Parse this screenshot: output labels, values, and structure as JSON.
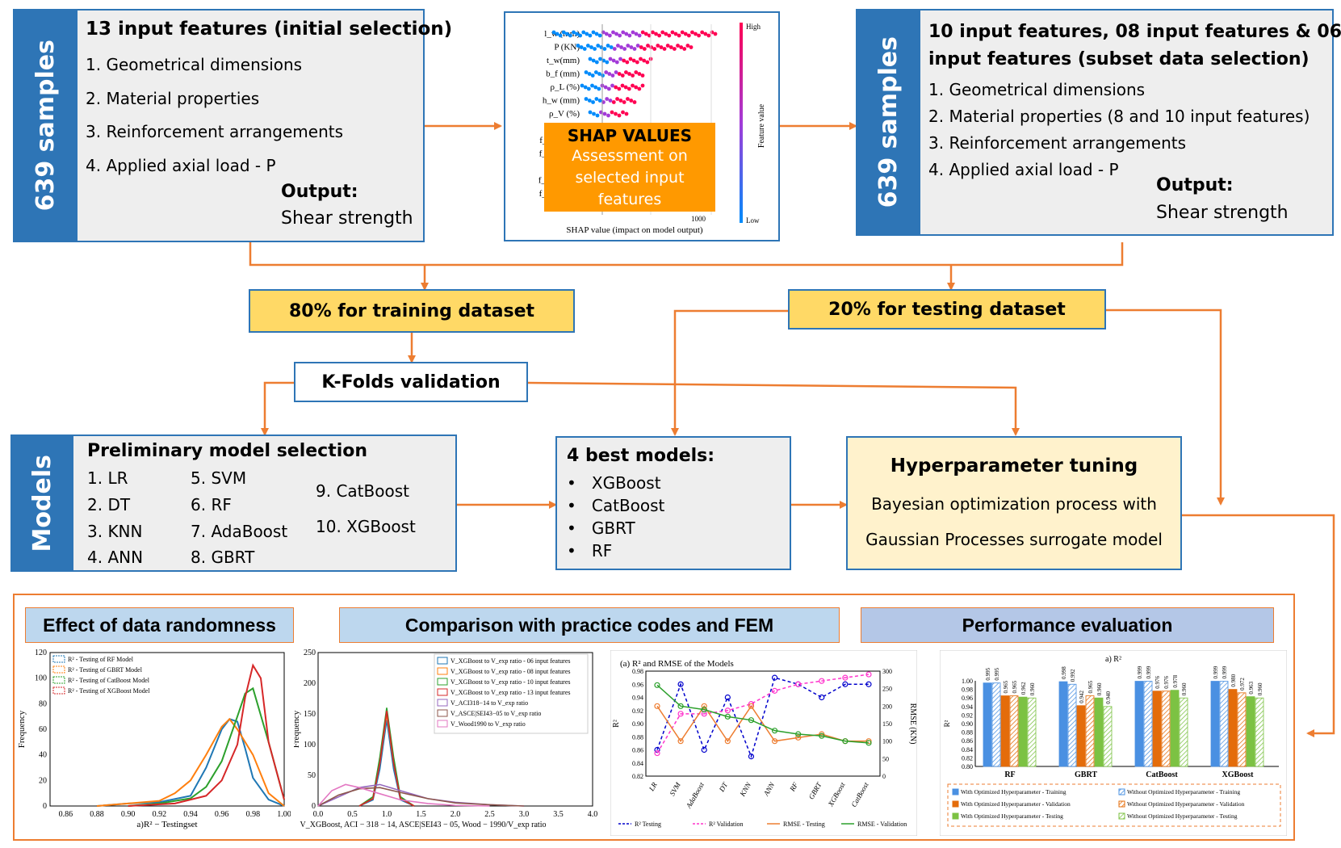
{
  "box1": {
    "side_label": "639 samples",
    "title": "13 input features (initial selection)",
    "items": [
      "1. Geometrical dimensions",
      "2. Material properties",
      "3. Reinforcement arrangements",
      "4. Applied axial load - P"
    ],
    "output_label": "Output:",
    "output_value": "Shear strength"
  },
  "shap": {
    "features": [
      "l_w (mm)",
      "P  (KN)",
      "t_w(mm)",
      "b_f (mm)",
      "ρ_L (%)",
      "h_w (mm)",
      "ρ_V (%)",
      "t_f (mm)",
      "f_ck (Mpa)",
      "f_yh (Mpa)",
      "ρ_h (%)",
      "f_yL (Mpa)",
      "f_yv (Mpa)"
    ],
    "overlay_title": "SHAP VALUES",
    "overlay_text": [
      "Assessment on",
      "selected input",
      "features"
    ],
    "xlabel": "SHAP value (impact on model output)",
    "high": "High",
    "low": "Low",
    "colorbar_label": "Feature value",
    "tick": "1000"
  },
  "box2": {
    "side_label": "639 samples",
    "title_line1": "10 input features, 08 input features & 06",
    "title_line2": "input features (subset data selection)",
    "items": [
      "1.   Geometrical dimensions",
      "2.    Material properties (8 and 10 input features)",
      "3.   Reinforcement arrangements",
      "4.    Applied axial load - P"
    ],
    "output_label": "Output:",
    "output_value": "Shear strength"
  },
  "train_label": "80% for training dataset",
  "test_label": "20% for testing dataset",
  "kfold_label": "K-Folds validation",
  "models": {
    "side_label": "Models",
    "title": "Preliminary model selection",
    "col1": [
      "1. LR",
      "2. DT",
      "3. KNN",
      "4. ANN"
    ],
    "col2": [
      "5. SVM",
      "6. RF",
      "7. AdaBoost",
      "8. GBRT"
    ],
    "col3": [
      "9. CatBoost",
      "10. XGBoost"
    ]
  },
  "best": {
    "title": "4 best models:",
    "items": [
      "XGBoost",
      "CatBoost",
      "GBRT",
      "RF"
    ]
  },
  "hyper": {
    "title": "Hyperparameter tuning",
    "line1": "Bayesian optimization process with",
    "line2": "Gaussian Processes surrogate model"
  },
  "headers": {
    "randomness": "Effect of data randomness",
    "codes": "Comparison with practice codes and FEM",
    "perf": "Performance evaluation"
  },
  "colors": {
    "blue": "#2e75b6",
    "orange": "#ed7d31",
    "yellow": "#ffd966",
    "grey": "#eeeeee",
    "cream": "#fff2cc",
    "hdr_blue": "#bdd7ee",
    "hdr_lav": "#b4c7e7",
    "shap_orange": "#ff9900"
  },
  "chart_data": [
    {
      "type": "line",
      "title": "",
      "xlabel": "a)R² − Testingset",
      "ylabel": "Frequency",
      "xlim": [
        0.85,
        1.0
      ],
      "ylim": [
        0,
        120
      ],
      "x_ticks": [
        "0.86",
        "0.88",
        "0.90",
        "0.92",
        "0.94",
        "0.96",
        "0.98",
        "1.00"
      ],
      "y_ticks": [
        "0",
        "20",
        "40",
        "60",
        "80",
        "100",
        "120"
      ],
      "legend": [
        "R² - Testing of RF Model",
        "R² - Testing of GBRT Model",
        "R² - Testing  of CatBoost Model",
        "R² - Testing  of XGBoost Model"
      ],
      "series": [
        {
          "name": "R² - Testing of RF Model",
          "color": "#1f77b4",
          "x": [
            0.88,
            0.9,
            0.92,
            0.94,
            0.95,
            0.96,
            0.965,
            0.97,
            0.975,
            0.98,
            0.99,
            1.0
          ],
          "y": [
            0,
            2,
            3,
            8,
            30,
            60,
            68,
            66,
            45,
            22,
            5,
            0
          ]
        },
        {
          "name": "R² - Testing of GBRT Model",
          "color": "#ff7f0e",
          "x": [
            0.88,
            0.9,
            0.92,
            0.93,
            0.94,
            0.95,
            0.96,
            0.965,
            0.97,
            0.98,
            0.99,
            1.0
          ],
          "y": [
            0,
            2,
            4,
            10,
            20,
            40,
            62,
            68,
            60,
            40,
            10,
            0
          ]
        },
        {
          "name": "R² - Testing  of CatBoost Model",
          "color": "#2ca02c",
          "x": [
            0.9,
            0.92,
            0.94,
            0.95,
            0.96,
            0.97,
            0.975,
            0.98,
            0.99,
            1.0
          ],
          "y": [
            0,
            2,
            6,
            15,
            35,
            70,
            88,
            92,
            50,
            5
          ]
        },
        {
          "name": "R² - Testing  of XGBoost Model",
          "color": "#d62728",
          "x": [
            0.9,
            0.93,
            0.95,
            0.96,
            0.97,
            0.975,
            0.98,
            0.985,
            0.99,
            1.0
          ],
          "y": [
            0,
            2,
            8,
            20,
            48,
            85,
            110,
            100,
            50,
            5
          ]
        }
      ]
    },
    {
      "type": "line",
      "title": "",
      "xlabel": "V_XGBoost, ACI − 318 − 14, ASCE|SEI43 − 05, Wood − 1990/V_exp ratio",
      "ylabel": "Frequency",
      "xlim": [
        0,
        4.0
      ],
      "ylim": [
        0,
        250
      ],
      "x_ticks": [
        "0.0",
        "0.5",
        "1.0",
        "1.5",
        "2.0",
        "2.5",
        "3.0",
        "3.5",
        "4.0"
      ],
      "y_ticks": [
        "0",
        "50",
        "100",
        "150",
        "200",
        "250"
      ],
      "legend": [
        "V_XGBoost to V_exp ratio - 06 input features",
        "V_XGBoost to V_exp ratio - 08 input features",
        "V_XGBoost to V_exp ratio - 10 input features",
        "V_XGBoost to V_exp ratio - 13 input features",
        "V_ACI318−14  to V_exp ratio",
        "V_ASCE|SEI43−05  to V_exp ratio",
        "V_Wood1990 to V_exp ratio"
      ],
      "series": [
        {
          "color": "#1f77b4",
          "x": [
            0.6,
            0.8,
            0.9,
            1.0,
            1.1,
            1.2,
            1.4
          ],
          "y": [
            0,
            10,
            60,
            140,
            60,
            10,
            0
          ]
        },
        {
          "color": "#ff7f0e",
          "x": [
            0.6,
            0.8,
            0.9,
            1.0,
            1.1,
            1.2,
            1.4
          ],
          "y": [
            0,
            12,
            70,
            150,
            70,
            12,
            0
          ]
        },
        {
          "color": "#2ca02c",
          "x": [
            0.6,
            0.8,
            0.9,
            1.0,
            1.1,
            1.2,
            1.4
          ],
          "y": [
            0,
            15,
            80,
            160,
            80,
            15,
            0
          ]
        },
        {
          "color": "#d62728",
          "x": [
            0.6,
            0.8,
            0.9,
            1.0,
            1.1,
            1.2,
            1.4
          ],
          "y": [
            0,
            12,
            70,
            155,
            70,
            12,
            0
          ]
        },
        {
          "color": "#9467bd",
          "x": [
            0,
            0.3,
            0.6,
            0.9,
            1.2,
            1.6,
            2.0,
            2.5,
            3.0
          ],
          "y": [
            0,
            15,
            30,
            35,
            25,
            12,
            6,
            2,
            0
          ]
        },
        {
          "color": "#8c564b",
          "x": [
            0,
            0.3,
            0.6,
            0.9,
            1.2,
            1.6,
            2.0,
            2.5,
            3.0
          ],
          "y": [
            0,
            18,
            28,
            30,
            22,
            12,
            5,
            2,
            0
          ]
        },
        {
          "color": "#e377c2",
          "x": [
            0,
            0.2,
            0.4,
            0.6,
            0.9,
            1.2,
            1.6,
            2.0,
            2.5
          ],
          "y": [
            0,
            25,
            35,
            30,
            20,
            10,
            4,
            1,
            0
          ]
        }
      ]
    },
    {
      "type": "line",
      "title": "(a) R² and RMSE of the Models",
      "ylabel": "R²",
      "y2label": "RMSE (KN)",
      "categories": [
        "LR",
        "SVM",
        "AdaBoost",
        "DT",
        "KNN",
        "ANN",
        "RF",
        "GBRT",
        "XGBoost",
        "CatBoost"
      ],
      "ylim": [
        0.82,
        0.98
      ],
      "y2lim": [
        0,
        300
      ],
      "y_ticks": [
        "0.82",
        "0.84",
        "0.86",
        "0.88",
        "0.90",
        "0.92",
        "0.94",
        "0.96",
        "0.98"
      ],
      "y2_ticks": [
        "0",
        "50",
        "100",
        "150",
        "200",
        "250",
        "300"
      ],
      "legend": [
        "R² Testing",
        "R² Validation",
        "RMSE - Testing",
        "RMSE - Validation"
      ],
      "series": [
        {
          "name": "R² Testing",
          "color": "#0000cc",
          "axis": "left",
          "values": [
            0.86,
            0.96,
            0.86,
            0.94,
            0.85,
            0.97,
            0.96,
            0.94,
            0.96,
            0.96
          ]
        },
        {
          "name": "R² Validation",
          "color": "#ff33cc",
          "axis": "left",
          "values": [
            0.855,
            0.915,
            0.915,
            0.92,
            0.93,
            0.95,
            0.96,
            0.965,
            0.97,
            0.975
          ]
        },
        {
          "name": "RMSE - Testing",
          "color": "#ed7d31",
          "axis": "right",
          "values": [
            200,
            100,
            200,
            100,
            200,
            100,
            110,
            120,
            100,
            100
          ]
        },
        {
          "name": "RMSE - Validation",
          "color": "#2ca02c",
          "axis": "right",
          "values": [
            260,
            200,
            190,
            170,
            160,
            130,
            120,
            115,
            100,
            95
          ]
        }
      ]
    },
    {
      "type": "bar",
      "title": "a) R²",
      "ylabel": "R²",
      "ylim": [
        0.8,
        1.0
      ],
      "categories": [
        "RF",
        "GBRT",
        "CatBoost",
        "XGBoost"
      ],
      "y_ticks": [
        "0.80",
        "0.82",
        "0.84",
        "0.86",
        "0.88",
        "0.90",
        "0.92",
        "0.94",
        "0.96",
        "0.98",
        "1.00"
      ],
      "legend": [
        "With Optimized Hyperparameter - Training",
        "Without Optimized Hyperparameter - Training",
        "With Optimized Hyperparameter - Validation",
        "Without Optimized Hyperparameter - Validation",
        "With Optimized Hyperparameter - Testing",
        "Without Optimized Hyperparameter - Testing"
      ],
      "series": [
        {
          "name": "With Optimized Hyperparameter - Training",
          "color": "#4a90e2",
          "hatch": false,
          "values": [
            0.995,
            0.998,
            0.999,
            0.999
          ]
        },
        {
          "name": "Without Optimized Hyperparameter - Training",
          "color": "#4a90e2",
          "hatch": true,
          "values": [
            0.995,
            0.992,
            0.999,
            0.999
          ]
        },
        {
          "name": "With Optimized Hyperparameter - Validation",
          "color": "#e46c0a",
          "hatch": false,
          "values": [
            0.965,
            0.942,
            0.976,
            0.98
          ]
        },
        {
          "name": "Without Optimized Hyperparameter - Validation",
          "color": "#e46c0a",
          "hatch": true,
          "values": [
            0.965,
            0.965,
            0.976,
            0.972
          ]
        },
        {
          "name": "With Optimized Hyperparameter - Testing",
          "color": "#7cc243",
          "hatch": false,
          "values": [
            0.962,
            0.96,
            0.978,
            0.963
          ]
        },
        {
          "name": "Without Optimized Hyperparameter - Testing",
          "color": "#7cc243",
          "hatch": true,
          "values": [
            0.96,
            0.94,
            0.96,
            0.96
          ]
        }
      ],
      "labels": [
        [
          "0.995",
          "0.995",
          "0.965",
          "0.965",
          "0.962",
          "0.960"
        ],
        [
          "0.998",
          "0.992",
          "0.942",
          "0.965",
          "0.960",
          "0.940"
        ],
        [
          "0.999",
          "0.999",
          "0.976",
          "0.976",
          "0.978",
          "0.960"
        ],
        [
          "0.999",
          "0.999",
          "0.980",
          "0.972",
          "0.963",
          "0.960"
        ]
      ]
    }
  ]
}
